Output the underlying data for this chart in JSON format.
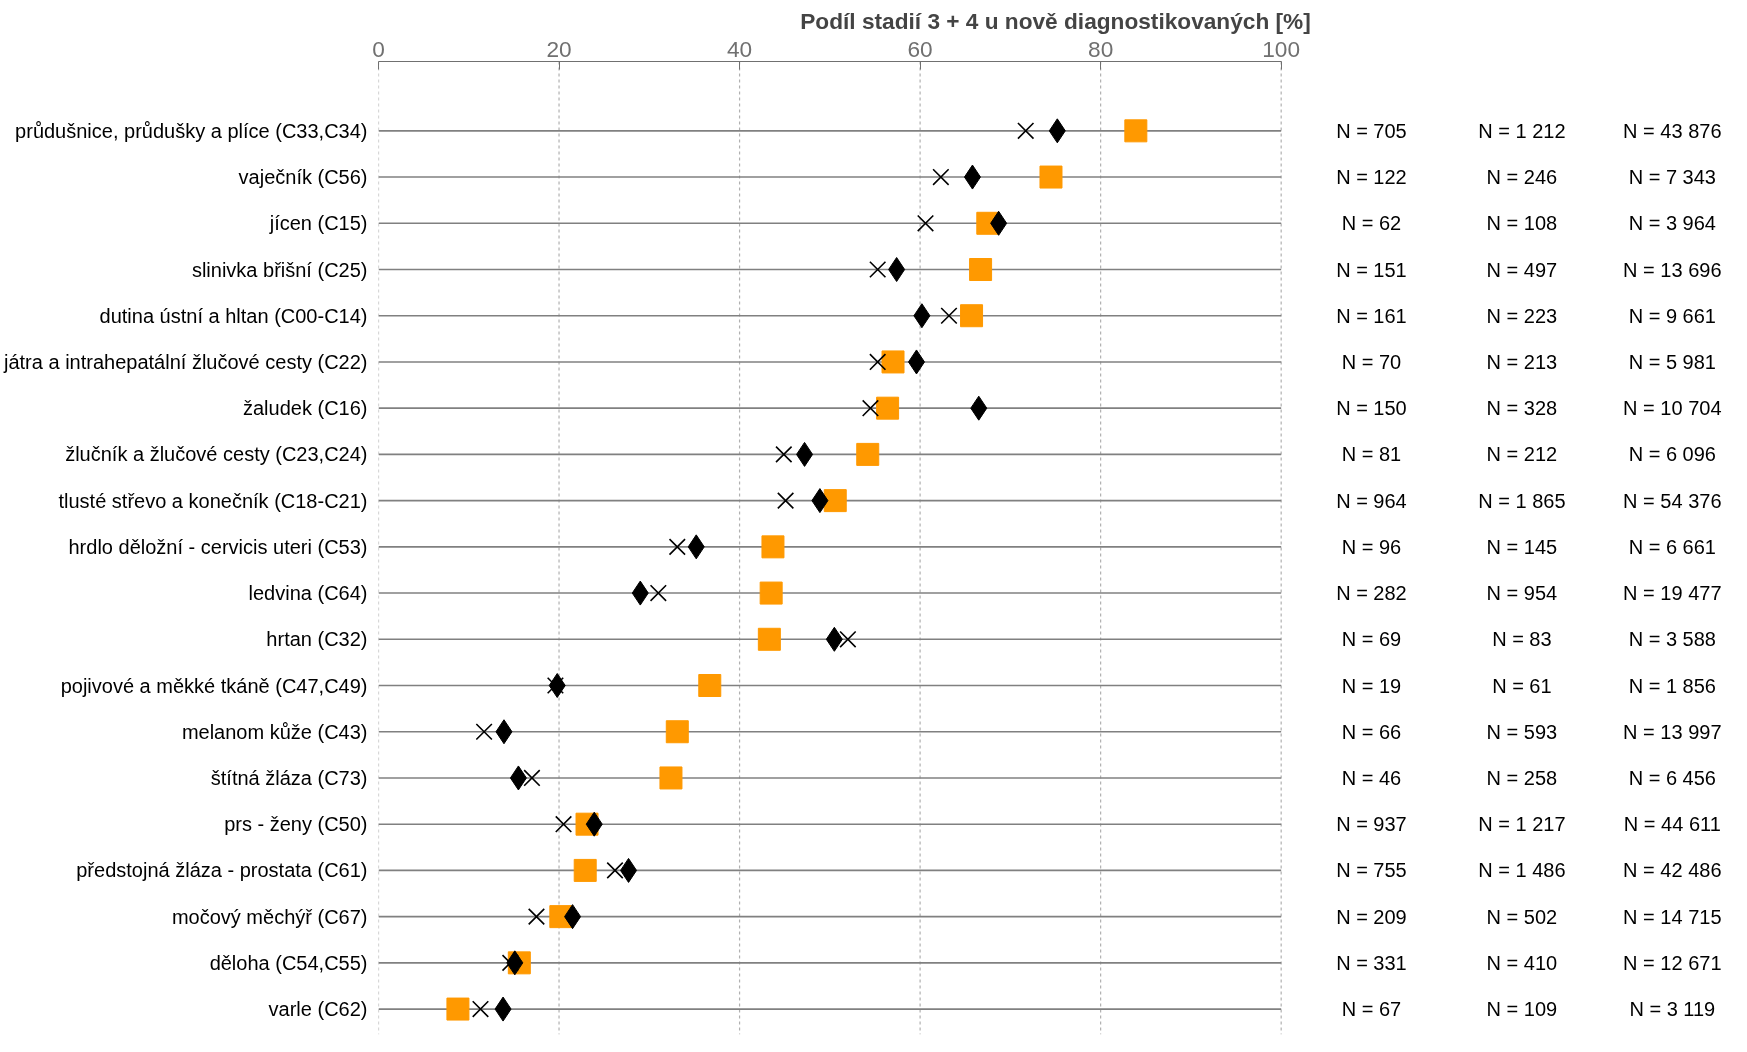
{
  "chart_data": {
    "type": "scatter",
    "orientation": "horizontal",
    "title": "Podíl stadií 3 + 4 u nově diagnostikovaných [%]",
    "categories": [
      "průdušnice, průdušky a plíce (C33,C34)",
      "vaječník (C56)",
      "jícen (C15)",
      "slinivka břišní (C25)",
      "dutina ústní a hltan (C00-C14)",
      "játra a intrahepatální žlučové cesty (C22)",
      "žaludek (C16)",
      "žlučník a žlučové cesty (C23,C24)",
      "tlusté střevo a konečník (C18-C21)",
      "hrdlo děložní - cervicis uteri (C53)",
      "ledvina (C64)",
      "hrtan (C32)",
      "pojivové a měkké tkáně (C47,C49)",
      "melanom kůže (C43)",
      "štítná žláza (C73)",
      "prs - ženy (C50)",
      "předstojná žláza - prostata (C61)",
      "močový měchýř (C67)",
      "děloha (C54,C55)",
      "varle (C62)"
    ],
    "series": [
      {
        "color": "#ff9900",
        "marker": "square",
        "values": [
          83.9,
          74.5,
          67.5,
          66.7,
          65.7,
          57.0,
          56.4,
          54.2,
          50.6,
          43.7,
          43.5,
          43.3,
          36.7,
          33.1,
          32.4,
          23.1,
          22.9,
          20.2,
          15.6,
          8.8
        ]
      },
      {
        "color": "#000000",
        "marker": "diamond",
        "values": [
          75.2,
          65.8,
          68.7,
          57.4,
          60.2,
          59.6,
          66.5,
          47.2,
          48.9,
          35.2,
          29.0,
          50.5,
          19.8,
          13.9,
          15.5,
          23.9,
          27.7,
          21.5,
          15.1,
          13.8
        ]
      },
      {
        "color": "#000000",
        "marker": "cross",
        "values": [
          71.7,
          62.3,
          60.6,
          55.3,
          63.2,
          55.3,
          54.5,
          44.9,
          45.1,
          33.1,
          31.0,
          52.0,
          19.6,
          11.7,
          17.0,
          20.5,
          26.2,
          17.5,
          14.6,
          11.3
        ]
      }
    ],
    "xlim": [
      0,
      100
    ],
    "xticks": [
      0,
      20,
      40,
      60,
      80,
      100
    ],
    "grid": true,
    "annotations": [
      "N = 705",
      "N = 1 212",
      "N = 43 876",
      "N = 122",
      "N = 246",
      "N = 7 343",
      "N = 62",
      "N = 108",
      "N = 3 964",
      "N = 151",
      "N = 497",
      "N = 13 696",
      "N = 161",
      "N = 223",
      "N = 9 661",
      "N = 70",
      "N = 213",
      "N = 5 981",
      "N = 150",
      "N = 328",
      "N = 10 704",
      "N = 81",
      "N = 212",
      "N = 6 096",
      "N = 964",
      "N = 1 865",
      "N = 54 376",
      "N = 96",
      "N = 145",
      "N = 6 661",
      "N = 282",
      "N = 954",
      "N = 19 477",
      "N = 69",
      "N = 83",
      "N = 3 588",
      "N = 19",
      "N = 61",
      "N = 1 856",
      "N = 66",
      "N = 593",
      "N = 13 997",
      "N = 46",
      "N = 258",
      "N = 6 456",
      "N = 937",
      "N = 1 217",
      "N = 44 611",
      "N = 755",
      "N = 1 486",
      "N = 42 486",
      "N = 209",
      "N = 502",
      "N = 14 715",
      "N = 331",
      "N = 410",
      "N = 12 671",
      "N = 67",
      "N = 109",
      "N = 3 119"
    ]
  }
}
